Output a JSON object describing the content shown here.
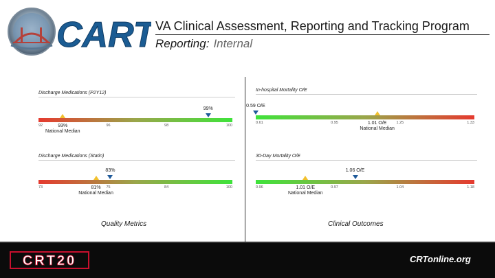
{
  "header": {
    "logo_text": "CART",
    "title": "VA Clinical Assessment, Reporting and Tracking Program",
    "subtitle_label": "Reporting:",
    "subtitle_value": "Internal"
  },
  "left_panel": {
    "caption": "Quality Metrics",
    "metrics": [
      {
        "title": "Discharge Medications (P2Y12)",
        "ticks": [
          "92",
          "96",
          "98",
          "100"
        ],
        "value": 99,
        "value_label": "99%",
        "median": 93,
        "median_label": "93%",
        "median_name": "National Median"
      },
      {
        "title": "Discharge Medications (Statin)",
        "ticks": [
          "73",
          "75",
          "84",
          "100"
        ],
        "value": 83,
        "value_label": "83%",
        "median": 81,
        "median_label": "81%",
        "median_name": "National Median"
      }
    ]
  },
  "right_panel": {
    "caption": "Clinical Outcomes",
    "metrics": [
      {
        "title": "In-hospital Mortality O/E",
        "ticks": [
          "0.61",
          "0.95",
          "1.25",
          "1.33"
        ],
        "value": 0.59,
        "value_label": "0.59 O/E",
        "median": 1.01,
        "median_label": "1.01 O/E",
        "median_name": "National Median"
      },
      {
        "title": "30-Day Mortality O/E",
        "ticks": [
          "0.96",
          "0.97",
          "1.04",
          "1.18"
        ],
        "value": 1.06,
        "value_label": "1.06 O/E",
        "median": 1.01,
        "median_label": "1.01 O/E",
        "median_name": "National Median"
      }
    ]
  },
  "footer": {
    "left_logo_text": "CRT20",
    "right_logo_text": "CRTonline.org"
  },
  "colors": {
    "gradient_low": "#e53a2f",
    "gradient_high": "#3fe33b",
    "value_marker": "#1f5a9a",
    "median_marker": "#f2c12e",
    "logo_blue": "#1b5c93",
    "footer_bg": "#0b0b0b",
    "crt20_red": "#c8102e"
  }
}
